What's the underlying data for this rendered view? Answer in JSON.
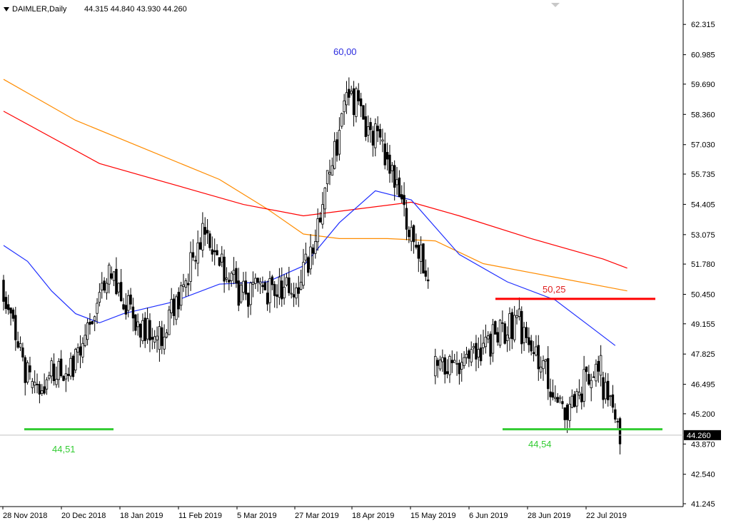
{
  "header": {
    "symbol": "DAIMLER,Daily",
    "ohlc": "44.315 44.840 43.930 44.260"
  },
  "chart_data": {
    "type": "candlestick",
    "title": "DAIMLER,Daily",
    "ylim": [
      41.245,
      63.2
    ],
    "y_ticks": [
      "62.315",
      "60.985",
      "59.690",
      "58.360",
      "57.030",
      "55.735",
      "54.405",
      "53.075",
      "51.780",
      "50.450",
      "49.155",
      "47.825",
      "46.495",
      "45.200",
      "43.870",
      "42.540",
      "41.245"
    ],
    "x_ticks": [
      "28 Nov 2018",
      "20 Dec 2018",
      "18 Jan 2019",
      "11 Feb 2019",
      "5 Mar 2019",
      "27 Mar 2019",
      "18 Apr 2019",
      "15 May 2019",
      "6 Jun 2019",
      "28 Jun 2019",
      "22 Jul 2019"
    ],
    "last_price": "44.260",
    "colors": {
      "ma_blue": "#1f2fff",
      "ma_red": "#ff0000",
      "ma_orange": "#ff8c00",
      "support": "#33cc33",
      "resistance": "#ff0000",
      "candle": "#000000"
    },
    "annotations": [
      {
        "text": "60,00",
        "color": "#2b2bdf"
      },
      {
        "text": "50,25",
        "color": "#e02020"
      },
      {
        "text": "44,51",
        "color": "#33cc33"
      },
      {
        "text": "44,54",
        "color": "#33cc33"
      }
    ],
    "levels": {
      "support": 44.52,
      "resistance": 50.25,
      "peak": 60.0
    },
    "ma_orange": [
      [
        0,
        59.9
      ],
      [
        30,
        58.1
      ],
      [
        60,
        56.8
      ],
      [
        90,
        55.5
      ],
      [
        110,
        54.2
      ],
      [
        125,
        53.1
      ],
      [
        140,
        52.9
      ],
      [
        160,
        52.9
      ],
      [
        180,
        52.8
      ],
      [
        200,
        51.8
      ],
      [
        230,
        51.2
      ],
      [
        260,
        50.6
      ]
    ],
    "ma_red": [
      [
        0,
        58.5
      ],
      [
        40,
        56.2
      ],
      [
        80,
        55.0
      ],
      [
        100,
        54.4
      ],
      [
        125,
        53.9
      ],
      [
        140,
        54.1
      ],
      [
        170,
        54.5
      ],
      [
        190,
        53.9
      ],
      [
        220,
        52.9
      ],
      [
        250,
        52.0
      ],
      [
        260,
        51.6
      ]
    ],
    "ma_blue": [
      [
        0,
        52.6
      ],
      [
        10,
        51.9
      ],
      [
        20,
        50.6
      ],
      [
        30,
        49.6
      ],
      [
        40,
        49.2
      ],
      [
        50,
        49.6
      ],
      [
        70,
        50.1
      ],
      [
        90,
        50.9
      ],
      [
        110,
        51.0
      ],
      [
        125,
        51.7
      ],
      [
        140,
        53.6
      ],
      [
        155,
        55.0
      ],
      [
        170,
        54.6
      ],
      [
        190,
        52.2
      ],
      [
        210,
        51.0
      ],
      [
        230,
        50.2
      ],
      [
        245,
        49.0
      ],
      [
        255,
        48.2
      ]
    ],
    "candles_blocks": [
      {
        "start": 0,
        "end": 12,
        "open": 50.9,
        "close": 46.5,
        "seed": 3
      },
      {
        "start": 12,
        "end": 30,
        "open": 46.5,
        "close": 47.2,
        "seed": 7
      },
      {
        "start": 30,
        "end": 45,
        "open": 47.2,
        "close": 51.2,
        "seed": 11
      },
      {
        "start": 45,
        "end": 65,
        "open": 51.2,
        "close": 48.2,
        "seed": 13
      },
      {
        "start": 65,
        "end": 85,
        "open": 48.2,
        "close": 53.2,
        "seed": 17
      },
      {
        "start": 85,
        "end": 100,
        "open": 53.2,
        "close": 50.4,
        "seed": 19
      },
      {
        "start": 100,
        "end": 125,
        "open": 50.4,
        "close": 50.8,
        "seed": 23
      },
      {
        "start": 125,
        "end": 145,
        "open": 50.8,
        "close": 59.4,
        "seed": 29
      },
      {
        "start": 145,
        "end": 160,
        "open": 59.4,
        "close": 56.5,
        "seed": 31
      },
      {
        "start": 160,
        "end": 178,
        "open": 56.5,
        "close": 51.1,
        "seed": 37
      },
      {
        "start": 180,
        "end": 200,
        "open": 47.0,
        "close": 48.0,
        "seed": 41
      },
      {
        "start": 200,
        "end": 215,
        "open": 48.0,
        "close": 49.3,
        "seed": 43
      },
      {
        "start": 215,
        "end": 235,
        "open": 49.3,
        "close": 45.5,
        "seed": 47
      },
      {
        "start": 235,
        "end": 250,
        "open": 45.5,
        "close": 47.3,
        "seed": 53
      },
      {
        "start": 250,
        "end": 258,
        "open": 46.8,
        "close": 44.26,
        "seed": 59
      }
    ]
  }
}
